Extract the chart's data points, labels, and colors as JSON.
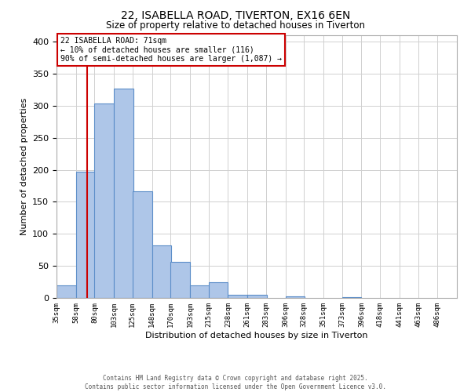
{
  "title": "22, ISABELLA ROAD, TIVERTON, EX16 6EN",
  "subtitle": "Size of property relative to detached houses in Tiverton",
  "xlabel": "Distribution of detached houses by size in Tiverton",
  "ylabel": "Number of detached properties",
  "bar_values": [
    20,
    197,
    303,
    327,
    167,
    82,
    56,
    20,
    24,
    5,
    5,
    0,
    3,
    0,
    0,
    1
  ],
  "bar_left_edges": [
    35,
    58,
    80,
    103,
    125,
    148,
    170,
    193,
    215,
    238,
    261,
    283,
    306,
    328,
    351,
    373
  ],
  "bin_width": 23,
  "x_tick_labels": [
    "35sqm",
    "58sqm",
    "80sqm",
    "103sqm",
    "125sqm",
    "148sqm",
    "170sqm",
    "193sqm",
    "215sqm",
    "238sqm",
    "261sqm",
    "283sqm",
    "306sqm",
    "328sqm",
    "351sqm",
    "373sqm",
    "396sqm",
    "418sqm",
    "441sqm",
    "463sqm",
    "486sqm"
  ],
  "x_tick_positions": [
    35,
    58,
    80,
    103,
    125,
    148,
    170,
    193,
    215,
    238,
    261,
    283,
    306,
    328,
    351,
    373,
    396,
    418,
    441,
    463,
    486
  ],
  "xlim_min": 35,
  "xlim_max": 509,
  "ylim": [
    0,
    410
  ],
  "yticks": [
    0,
    50,
    100,
    150,
    200,
    250,
    300,
    350,
    400
  ],
  "bar_fill_color": "#aec6e8",
  "bar_edge_color": "#5b8dc8",
  "vline_x": 71,
  "vline_color": "#cc0000",
  "annotation_title": "22 ISABELLA ROAD: 71sqm",
  "annotation_line1": "← 10% of detached houses are smaller (116)",
  "annotation_line2": "90% of semi-detached houses are larger (1,087) →",
  "annotation_box_edge_color": "#cc0000",
  "footer_line1": "Contains HM Land Registry data © Crown copyright and database right 2025.",
  "footer_line2": "Contains public sector information licensed under the Open Government Licence v3.0.",
  "background_color": "#ffffff",
  "grid_color": "#d0d0d0"
}
